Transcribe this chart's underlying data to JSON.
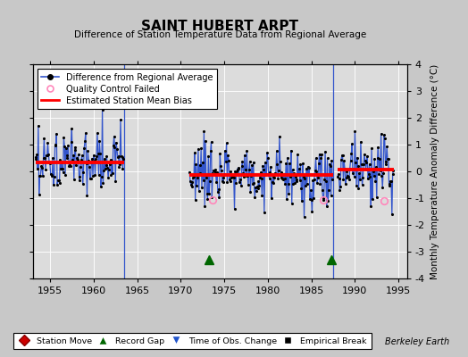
{
  "title": "SAINT HUBERT ARPT",
  "subtitle": "Difference of Station Temperature Data from Regional Average",
  "ylabel_right": "Monthly Temperature Anomaly Difference (°C)",
  "credit": "Berkeley Earth",
  "xlim": [
    1953,
    1996
  ],
  "ylim": [
    -4,
    4
  ],
  "yticks": [
    -4,
    -3,
    -2,
    -1,
    0,
    1,
    2,
    3,
    4
  ],
  "xticks": [
    1955,
    1960,
    1965,
    1970,
    1975,
    1980,
    1985,
    1990,
    1995
  ],
  "bg_color": "#c8c8c8",
  "plot_bg_color": "#dcdcdc",
  "line_color": "#3355cc",
  "dot_color": "black",
  "red_color": "red",
  "seg1_start": 1953.3,
  "seg1_end": 1963.5,
  "seg2_start": 1971.0,
  "seg2_end": 1987.5,
  "seg3_start": 1988.0,
  "seg3_end": 1994.5,
  "bias1": 0.33,
  "bias2": -0.13,
  "bias3": 0.07,
  "gap_line_x1": 1963.5,
  "gap_line_x2": 1987.5,
  "record_gap_x1": 1973.2,
  "record_gap_x2": 1987.3,
  "qc_fail_points": [
    [
      1973.7,
      -1.05
    ],
    [
      1986.4,
      -1.05
    ],
    [
      1993.3,
      -1.1
    ]
  ]
}
